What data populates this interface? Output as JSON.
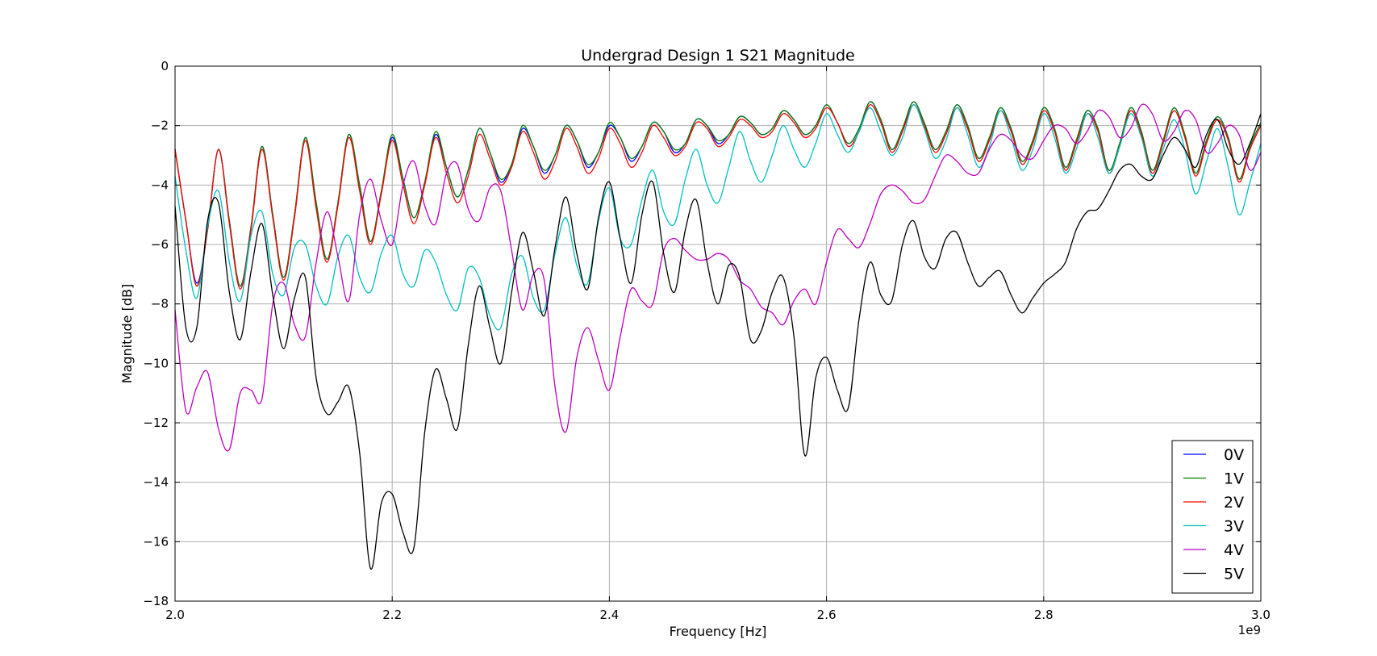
{
  "chart_data": {
    "type": "line",
    "title": "Undergrad Design 1 S21 Magnitude",
    "xlabel": "Frequency [Hz]",
    "ylabel": "Magnitude [dB]",
    "x_offset_label": "1e9",
    "xlim": [
      2.0,
      3.0
    ],
    "ylim": [
      -18,
      0
    ],
    "x_ticks": [
      "2.0",
      "2.2",
      "2.4",
      "2.6",
      "2.8",
      "3.0"
    ],
    "y_ticks": [
      "0",
      "−2",
      "−4",
      "−6",
      "−8",
      "−10",
      "−12",
      "−14",
      "−16",
      "−18"
    ],
    "grid": true,
    "legend_position": "lower-right",
    "x": [
      2.0,
      2.01,
      2.02,
      2.03,
      2.04,
      2.05,
      2.06,
      2.07,
      2.08,
      2.09,
      2.1,
      2.11,
      2.12,
      2.13,
      2.14,
      2.15,
      2.16,
      2.17,
      2.18,
      2.19,
      2.2,
      2.21,
      2.22,
      2.23,
      2.24,
      2.25,
      2.26,
      2.27,
      2.28,
      2.29,
      2.3,
      2.31,
      2.32,
      2.33,
      2.34,
      2.35,
      2.36,
      2.37,
      2.38,
      2.39,
      2.4,
      2.41,
      2.42,
      2.43,
      2.44,
      2.45,
      2.46,
      2.47,
      2.48,
      2.49,
      2.5,
      2.51,
      2.52,
      2.53,
      2.54,
      2.55,
      2.56,
      2.57,
      2.58,
      2.59,
      2.6,
      2.61,
      2.62,
      2.63,
      2.64,
      2.65,
      2.66,
      2.67,
      2.68,
      2.69,
      2.7,
      2.71,
      2.72,
      2.73,
      2.74,
      2.75,
      2.76,
      2.77,
      2.78,
      2.79,
      2.8,
      2.81,
      2.82,
      2.83,
      2.84,
      2.85,
      2.86,
      2.87,
      2.88,
      2.89,
      2.9,
      2.91,
      2.92,
      2.93,
      2.94,
      2.95,
      2.96,
      2.97,
      2.98,
      2.99,
      3.0
    ],
    "series": [
      {
        "name": "0V",
        "color": "#0000ff",
        "values": [
          -2.8,
          -5.2,
          -7.3,
          -5.5,
          -2.8,
          -5.2,
          -7.4,
          -5.4,
          -2.7,
          -5.0,
          -7.1,
          -5.0,
          -2.4,
          -4.6,
          -6.5,
          -4.6,
          -2.3,
          -4.0,
          -5.9,
          -4.2,
          -2.4,
          -3.8,
          -5.1,
          -3.9,
          -2.3,
          -3.4,
          -4.4,
          -3.5,
          -2.1,
          -2.9,
          -3.9,
          -3.3,
          -2.1,
          -2.7,
          -3.6,
          -3.0,
          -2.0,
          -2.5,
          -3.4,
          -2.9,
          -2.0,
          -2.4,
          -3.2,
          -2.7,
          -1.9,
          -2.2,
          -2.9,
          -2.6,
          -1.8,
          -2.0,
          -2.6,
          -2.3,
          -1.7,
          -1.9,
          -2.3,
          -2.1,
          -1.5,
          -1.8,
          -2.3,
          -2.0,
          -1.3,
          -1.9,
          -2.6,
          -2.1,
          -1.2,
          -1.8,
          -2.8,
          -2.1,
          -1.2,
          -1.9,
          -2.8,
          -2.2,
          -1.3,
          -2.0,
          -3.1,
          -2.4,
          -1.4,
          -2.1,
          -3.2,
          -2.5,
          -1.4,
          -2.1,
          -3.4,
          -2.5,
          -1.5,
          -2.1,
          -3.5,
          -2.6,
          -1.4,
          -2.2,
          -3.5,
          -2.5,
          -1.4,
          -2.3,
          -3.6,
          -2.5,
          -1.7,
          -2.4,
          -3.8,
          -2.7,
          -1.9
        ]
      },
      {
        "name": "1V",
        "color": "#008000",
        "values": [
          -2.8,
          -5.2,
          -7.4,
          -5.5,
          -2.8,
          -5.2,
          -7.4,
          -5.4,
          -2.7,
          -5.0,
          -7.1,
          -5.0,
          -2.4,
          -4.6,
          -6.5,
          -4.6,
          -2.3,
          -4.0,
          -5.9,
          -4.2,
          -2.3,
          -3.8,
          -5.1,
          -3.9,
          -2.2,
          -3.4,
          -4.4,
          -3.5,
          -2.1,
          -2.9,
          -3.8,
          -3.3,
          -2.0,
          -2.7,
          -3.5,
          -3.0,
          -2.0,
          -2.5,
          -3.3,
          -2.9,
          -1.9,
          -2.4,
          -3.1,
          -2.7,
          -1.9,
          -2.2,
          -2.8,
          -2.6,
          -1.8,
          -2.0,
          -2.5,
          -2.3,
          -1.7,
          -1.9,
          -2.3,
          -2.1,
          -1.5,
          -1.8,
          -2.3,
          -2.0,
          -1.3,
          -1.9,
          -2.6,
          -2.1,
          -1.2,
          -1.8,
          -2.8,
          -2.1,
          -1.2,
          -1.9,
          -2.8,
          -2.2,
          -1.3,
          -2.0,
          -3.1,
          -2.4,
          -1.4,
          -2.1,
          -3.2,
          -2.5,
          -1.4,
          -2.1,
          -3.4,
          -2.5,
          -1.5,
          -2.1,
          -3.5,
          -2.6,
          -1.4,
          -2.2,
          -3.5,
          -2.5,
          -1.4,
          -2.3,
          -3.6,
          -2.5,
          -1.7,
          -2.4,
          -3.8,
          -2.7,
          -1.9
        ]
      },
      {
        "name": "2V",
        "color": "#ff0000",
        "values": [
          -2.8,
          -5.2,
          -7.4,
          -5.5,
          -2.8,
          -5.3,
          -7.5,
          -5.5,
          -2.8,
          -5.1,
          -7.2,
          -5.1,
          -2.5,
          -4.8,
          -6.6,
          -4.7,
          -2.4,
          -4.2,
          -6.0,
          -4.3,
          -2.5,
          -4.0,
          -5.3,
          -4.0,
          -2.4,
          -3.6,
          -4.6,
          -3.7,
          -2.3,
          -3.1,
          -4.0,
          -3.4,
          -2.2,
          -2.9,
          -3.8,
          -3.2,
          -2.1,
          -2.7,
          -3.6,
          -3.1,
          -2.1,
          -2.6,
          -3.4,
          -2.9,
          -2.0,
          -2.4,
          -3.0,
          -2.7,
          -1.9,
          -2.1,
          -2.7,
          -2.4,
          -1.8,
          -2.0,
          -2.4,
          -2.2,
          -1.6,
          -1.9,
          -2.4,
          -2.1,
          -1.4,
          -1.9,
          -2.7,
          -2.2,
          -1.3,
          -1.9,
          -2.9,
          -2.2,
          -1.3,
          -2.0,
          -2.9,
          -2.3,
          -1.4,
          -2.1,
          -3.2,
          -2.5,
          -1.5,
          -2.2,
          -3.3,
          -2.6,
          -1.5,
          -2.2,
          -3.5,
          -2.6,
          -1.6,
          -2.2,
          -3.6,
          -2.7,
          -1.5,
          -2.3,
          -3.6,
          -2.6,
          -1.5,
          -2.4,
          -3.7,
          -2.6,
          -1.8,
          -2.5,
          -3.9,
          -2.8,
          -2.0
        ]
      },
      {
        "name": "3V",
        "color": "#00bfbf",
        "values": [
          -3.7,
          -6.2,
          -7.8,
          -5.4,
          -4.2,
          -6.6,
          -7.9,
          -5.7,
          -4.9,
          -7.0,
          -7.7,
          -6.1,
          -6.0,
          -7.4,
          -8.0,
          -6.4,
          -5.7,
          -7.1,
          -7.6,
          -6.3,
          -5.7,
          -7.0,
          -7.4,
          -6.2,
          -6.6,
          -7.7,
          -8.2,
          -6.8,
          -7.1,
          -8.4,
          -8.8,
          -7.0,
          -6.4,
          -7.8,
          -8.2,
          -6.3,
          -5.1,
          -6.7,
          -7.3,
          -5.2,
          -4.1,
          -5.8,
          -6.0,
          -4.5,
          -3.5,
          -4.9,
          -5.3,
          -3.8,
          -2.8,
          -4.0,
          -4.6,
          -3.4,
          -2.2,
          -3.2,
          -3.9,
          -3.0,
          -2.0,
          -2.8,
          -3.4,
          -2.6,
          -1.6,
          -2.3,
          -2.9,
          -2.2,
          -1.4,
          -2.2,
          -3.0,
          -2.4,
          -1.3,
          -2.1,
          -3.1,
          -2.5,
          -1.4,
          -2.3,
          -3.4,
          -2.7,
          -1.5,
          -2.4,
          -3.5,
          -2.8,
          -1.6,
          -2.4,
          -3.6,
          -2.8,
          -1.6,
          -2.4,
          -3.6,
          -2.7,
          -1.6,
          -2.4,
          -3.7,
          -2.8,
          -1.8,
          -2.8,
          -4.3,
          -3.2,
          -2.1,
          -3.4,
          -5.0,
          -3.9,
          -2.6
        ]
      },
      {
        "name": "4V",
        "color": "#bf00bf",
        "values": [
          -8.2,
          -11.6,
          -10.8,
          -10.3,
          -12.2,
          -12.9,
          -11.0,
          -10.9,
          -11.2,
          -8.0,
          -7.3,
          -8.7,
          -9.1,
          -6.6,
          -4.9,
          -6.4,
          -7.9,
          -5.0,
          -3.8,
          -5.2,
          -6.0,
          -4.0,
          -3.2,
          -4.7,
          -5.3,
          -3.6,
          -3.3,
          -4.8,
          -5.2,
          -4.1,
          -4.2,
          -6.2,
          -8.2,
          -7.0,
          -7.2,
          -10.8,
          -12.3,
          -9.8,
          -8.8,
          -9.9,
          -10.9,
          -9.1,
          -7.5,
          -7.9,
          -8.0,
          -6.2,
          -5.8,
          -6.2,
          -6.5,
          -6.5,
          -6.3,
          -6.5,
          -7.2,
          -7.5,
          -8.1,
          -8.3,
          -8.7,
          -7.9,
          -7.5,
          -8.0,
          -6.6,
          -5.5,
          -5.8,
          -6.1,
          -5.3,
          -4.3,
          -4.0,
          -4.2,
          -4.6,
          -4.5,
          -3.7,
          -3.0,
          -3.2,
          -3.6,
          -3.6,
          -2.8,
          -2.3,
          -2.5,
          -3.0,
          -3.1,
          -2.5,
          -2.0,
          -2.1,
          -2.6,
          -2.2,
          -1.5,
          -1.7,
          -2.4,
          -2.1,
          -1.3,
          -1.6,
          -2.5,
          -2.2,
          -1.5,
          -1.8,
          -2.9,
          -2.6,
          -2.0,
          -2.3,
          -3.5,
          -2.9
        ]
      },
      {
        "name": "5V",
        "color": "#000000",
        "values": [
          -4.7,
          -8.8,
          -8.8,
          -5.2,
          -4.6,
          -7.6,
          -9.2,
          -6.9,
          -5.3,
          -7.7,
          -9.5,
          -7.8,
          -7.1,
          -10.5,
          -11.7,
          -11.3,
          -10.8,
          -13.0,
          -16.9,
          -14.7,
          -14.4,
          -15.7,
          -16.2,
          -12.3,
          -10.2,
          -11.2,
          -12.2,
          -9.4,
          -7.4,
          -8.8,
          -10.0,
          -7.6,
          -5.6,
          -6.9,
          -8.4,
          -6.1,
          -4.4,
          -6.3,
          -7.5,
          -5.1,
          -3.9,
          -5.8,
          -7.3,
          -5.0,
          -3.9,
          -6.3,
          -7.6,
          -5.5,
          -4.5,
          -6.6,
          -8.0,
          -6.7,
          -7.1,
          -9.2,
          -8.9,
          -7.6,
          -7.1,
          -9.1,
          -13.1,
          -10.5,
          -9.8,
          -10.9,
          -11.5,
          -8.5,
          -6.6,
          -7.7,
          -7.9,
          -6.0,
          -5.2,
          -6.4,
          -6.8,
          -5.8,
          -5.6,
          -6.6,
          -7.4,
          -7.1,
          -6.9,
          -7.7,
          -8.3,
          -7.8,
          -7.3,
          -7.0,
          -6.6,
          -5.5,
          -4.9,
          -4.8,
          -4.2,
          -3.5,
          -3.3,
          -3.7,
          -3.8,
          -3.0,
          -2.4,
          -2.8,
          -3.4,
          -2.3,
          -1.8,
          -2.8,
          -3.3,
          -2.6,
          -1.6
        ]
      }
    ]
  }
}
